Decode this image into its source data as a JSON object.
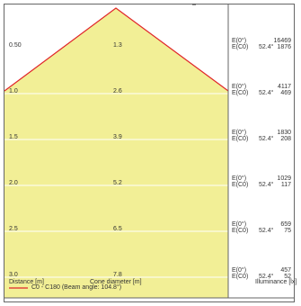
{
  "colors": {
    "cone_fill": "#f2ef96",
    "cone_edge": "#e0262a",
    "row_line": "#ffffff",
    "frame": "#666666",
    "text": "#333333"
  },
  "rows": [
    {
      "distance": "0.50",
      "diameter": "1.3",
      "e0_label": "E(0°)",
      "ec0_label": "E(C0)",
      "angle": "52.4°",
      "e0": "16469",
      "ec0": "1876"
    },
    {
      "distance": "1.0",
      "diameter": "2.6",
      "e0_label": "E(0°)",
      "ec0_label": "E(C0)",
      "angle": "52.4°",
      "e0": "4117",
      "ec0": "469"
    },
    {
      "distance": "1.5",
      "diameter": "3.9",
      "e0_label": "E(0°)",
      "ec0_label": "E(C0)",
      "angle": "52.4°",
      "e0": "1830",
      "ec0": "208"
    },
    {
      "distance": "2.0",
      "diameter": "5.2",
      "e0_label": "E(0°)",
      "ec0_label": "E(C0)",
      "angle": "52.4°",
      "e0": "1029",
      "ec0": "117"
    },
    {
      "distance": "2.5",
      "diameter": "6.5",
      "e0_label": "E(0°)",
      "ec0_label": "E(C0)",
      "angle": "52.4°",
      "e0": "659",
      "ec0": "75"
    },
    {
      "distance": "3.0",
      "diameter": "7.8",
      "e0_label": "E(0°)",
      "ec0_label": "E(C0)",
      "angle": "52.4°",
      "e0": "457",
      "ec0": "52"
    }
  ],
  "footer": {
    "distance_label": "Distance [m]",
    "diameter_label": "Cone diameter [m]",
    "illuminance_label": "Illuminance [lx]",
    "legend": "C0 - C180 (Beam angle: 104.8°)"
  }
}
